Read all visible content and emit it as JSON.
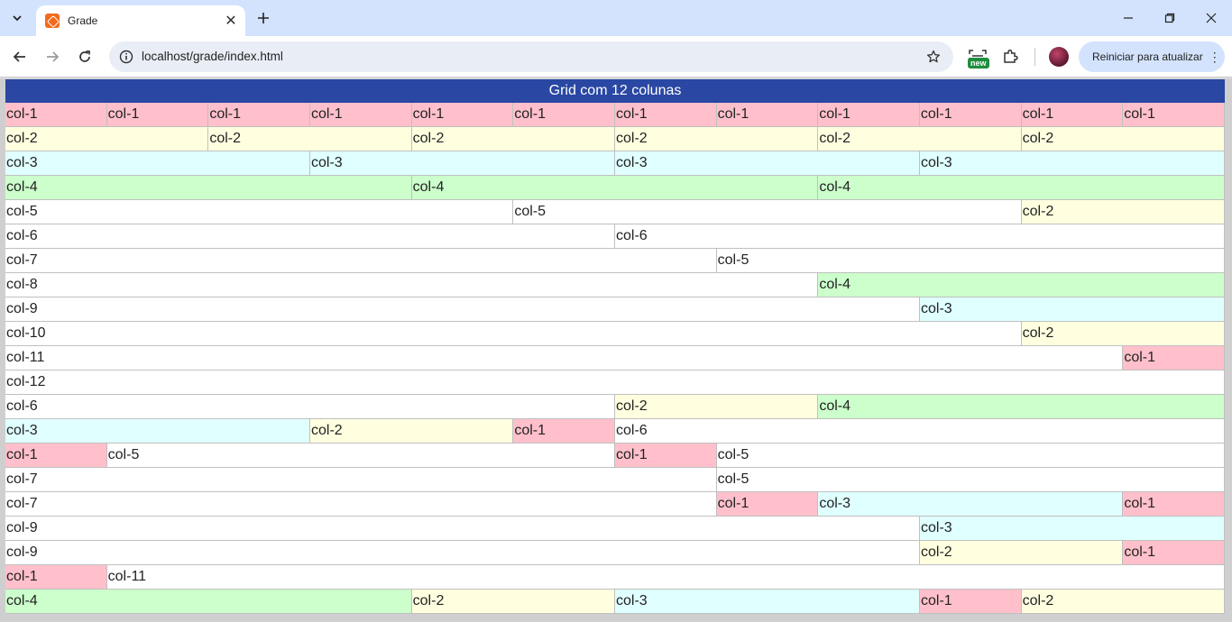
{
  "browser": {
    "tab_title": "Grade",
    "url": "localhost/grade/index.html",
    "new_badge": "new",
    "update_label": "Reiniciar para atualizar"
  },
  "colors": {
    "title_bar": "#2947a3",
    "col_1": "#ffc0cb",
    "col_2": "#ffffe0",
    "col_3": "#e0ffff",
    "col_4": "#ccffcc",
    "col_wide": "#ffffff"
  },
  "grid": {
    "title": "Grid com 12 colunas",
    "rows": [
      [
        "col-1",
        "col-1",
        "col-1",
        "col-1",
        "col-1",
        "col-1",
        "col-1",
        "col-1",
        "col-1",
        "col-1",
        "col-1",
        "col-1"
      ],
      [
        "col-2",
        "col-2",
        "col-2",
        "col-2",
        "col-2",
        "col-2"
      ],
      [
        "col-3",
        "col-3",
        "col-3",
        "col-3"
      ],
      [
        "col-4",
        "col-4",
        "col-4"
      ],
      [
        "col-5",
        "col-5",
        "col-2"
      ],
      [
        "col-6",
        "col-6"
      ],
      [
        "col-7",
        "col-5"
      ],
      [
        "col-8",
        "col-4"
      ],
      [
        "col-9",
        "col-3"
      ],
      [
        "col-10",
        "col-2"
      ],
      [
        "col-11",
        "col-1"
      ],
      [
        "col-12"
      ],
      [
        "col-6",
        "col-2",
        "col-4"
      ],
      [
        "col-3",
        "col-2",
        "col-1",
        "col-6"
      ],
      [
        "col-1",
        "col-5",
        "col-1",
        "col-5"
      ],
      [
        "col-7",
        "col-5"
      ],
      [
        "col-7",
        "col-1",
        "col-3",
        "col-1"
      ],
      [
        "col-9",
        "col-3"
      ],
      [
        "col-9",
        "col-2",
        "col-1"
      ],
      [
        "col-1",
        "col-11"
      ],
      [
        "col-4",
        "col-2",
        "col-3",
        "col-1",
        "col-2"
      ]
    ]
  }
}
